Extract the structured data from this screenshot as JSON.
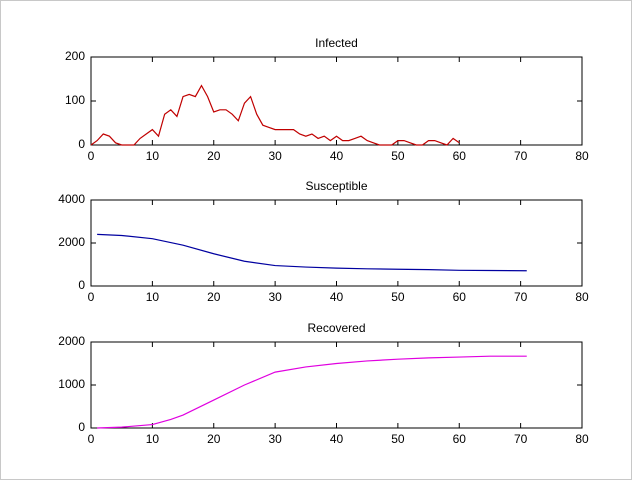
{
  "chart_data": [
    {
      "type": "line",
      "title": "Infected",
      "color": "#c00000",
      "x": [
        0,
        1,
        2,
        3,
        4,
        5,
        6,
        7,
        8,
        9,
        10,
        11,
        12,
        13,
        14,
        15,
        16,
        17,
        18,
        19,
        20,
        21,
        22,
        23,
        24,
        25,
        26,
        27,
        28,
        29,
        30,
        31,
        32,
        33,
        34,
        35,
        36,
        37,
        38,
        39,
        40,
        41,
        42,
        43,
        44,
        45,
        46,
        47,
        48,
        49,
        50,
        51,
        52,
        53,
        54,
        55,
        56,
        57,
        58,
        59,
        60
      ],
      "values": [
        0,
        10,
        25,
        20,
        5,
        0,
        0,
        0,
        15,
        25,
        35,
        20,
        70,
        80,
        65,
        110,
        115,
        110,
        135,
        110,
        75,
        80,
        80,
        70,
        55,
        95,
        110,
        70,
        45,
        40,
        35,
        35,
        35,
        35,
        25,
        20,
        25,
        15,
        20,
        10,
        20,
        10,
        10,
        15,
        20,
        10,
        5,
        0,
        0,
        0,
        10,
        10,
        5,
        0,
        0,
        10,
        10,
        5,
        0,
        15,
        5
      ],
      "xlim": [
        0,
        80
      ],
      "xticks": [
        0,
        10,
        20,
        30,
        40,
        50,
        60,
        70,
        80
      ],
      "ylim": [
        0,
        200
      ],
      "yticks": [
        0,
        100,
        200
      ]
    },
    {
      "type": "line",
      "title": "Susceptible",
      "color": "#0000a0",
      "x": [
        1,
        5,
        10,
        15,
        20,
        25,
        30,
        35,
        40,
        45,
        50,
        55,
        60,
        65,
        71
      ],
      "values": [
        2400,
        2350,
        2200,
        1900,
        1500,
        1150,
        950,
        880,
        830,
        800,
        780,
        760,
        730,
        720,
        710
      ],
      "xlim": [
        0,
        80
      ],
      "xticks": [
        0,
        10,
        20,
        30,
        40,
        50,
        60,
        70,
        80
      ],
      "ylim": [
        0,
        4000
      ],
      "yticks": [
        0,
        2000,
        4000
      ]
    },
    {
      "type": "line",
      "title": "Recovered",
      "color": "#e000e0",
      "x": [
        1,
        5,
        10,
        13,
        15,
        20,
        25,
        30,
        35,
        40,
        45,
        50,
        55,
        60,
        65,
        71
      ],
      "values": [
        0,
        20,
        80,
        200,
        300,
        650,
        1000,
        1300,
        1420,
        1500,
        1560,
        1600,
        1630,
        1650,
        1670,
        1670
      ],
      "xlim": [
        0,
        80
      ],
      "xticks": [
        0,
        10,
        20,
        30,
        40,
        50,
        60,
        70,
        80
      ],
      "ylim": [
        0,
        2000
      ],
      "yticks": [
        0,
        1000,
        2000
      ]
    }
  ]
}
